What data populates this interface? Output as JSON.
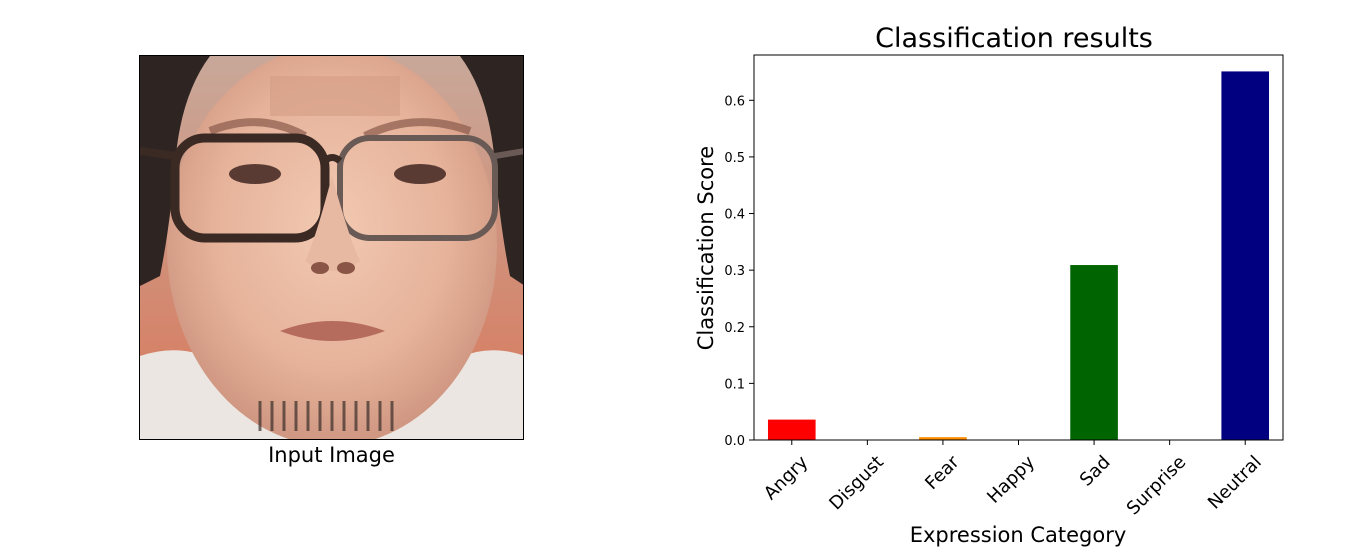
{
  "left_panel": {
    "image_caption": "Input Image",
    "image_description": "face-photo"
  },
  "chart_data": {
    "type": "bar",
    "title": "Classification results",
    "xlabel": "Expression Category",
    "ylabel": "Classification Score",
    "categories": [
      "Angry",
      "Disgust",
      "Fear",
      "Happy",
      "Sad",
      "Surprise",
      "Neutral"
    ],
    "values": [
      0.036,
      0.0,
      0.005,
      0.0,
      0.309,
      0.0,
      0.651
    ],
    "colors": [
      "#ff0000",
      "#7f7f7f",
      "#ff8c00",
      "#ffd700",
      "#006400",
      "#1f77b4",
      "#000080"
    ],
    "ylim": [
      0,
      0.68
    ],
    "yticks": [
      0.0,
      0.1,
      0.2,
      0.3,
      0.4,
      0.5,
      0.6
    ],
    "ytick_labels": [
      "0.0",
      "0.1",
      "0.2",
      "0.3",
      "0.4",
      "0.5",
      "0.6"
    ],
    "grid": false,
    "legend": "none"
  }
}
